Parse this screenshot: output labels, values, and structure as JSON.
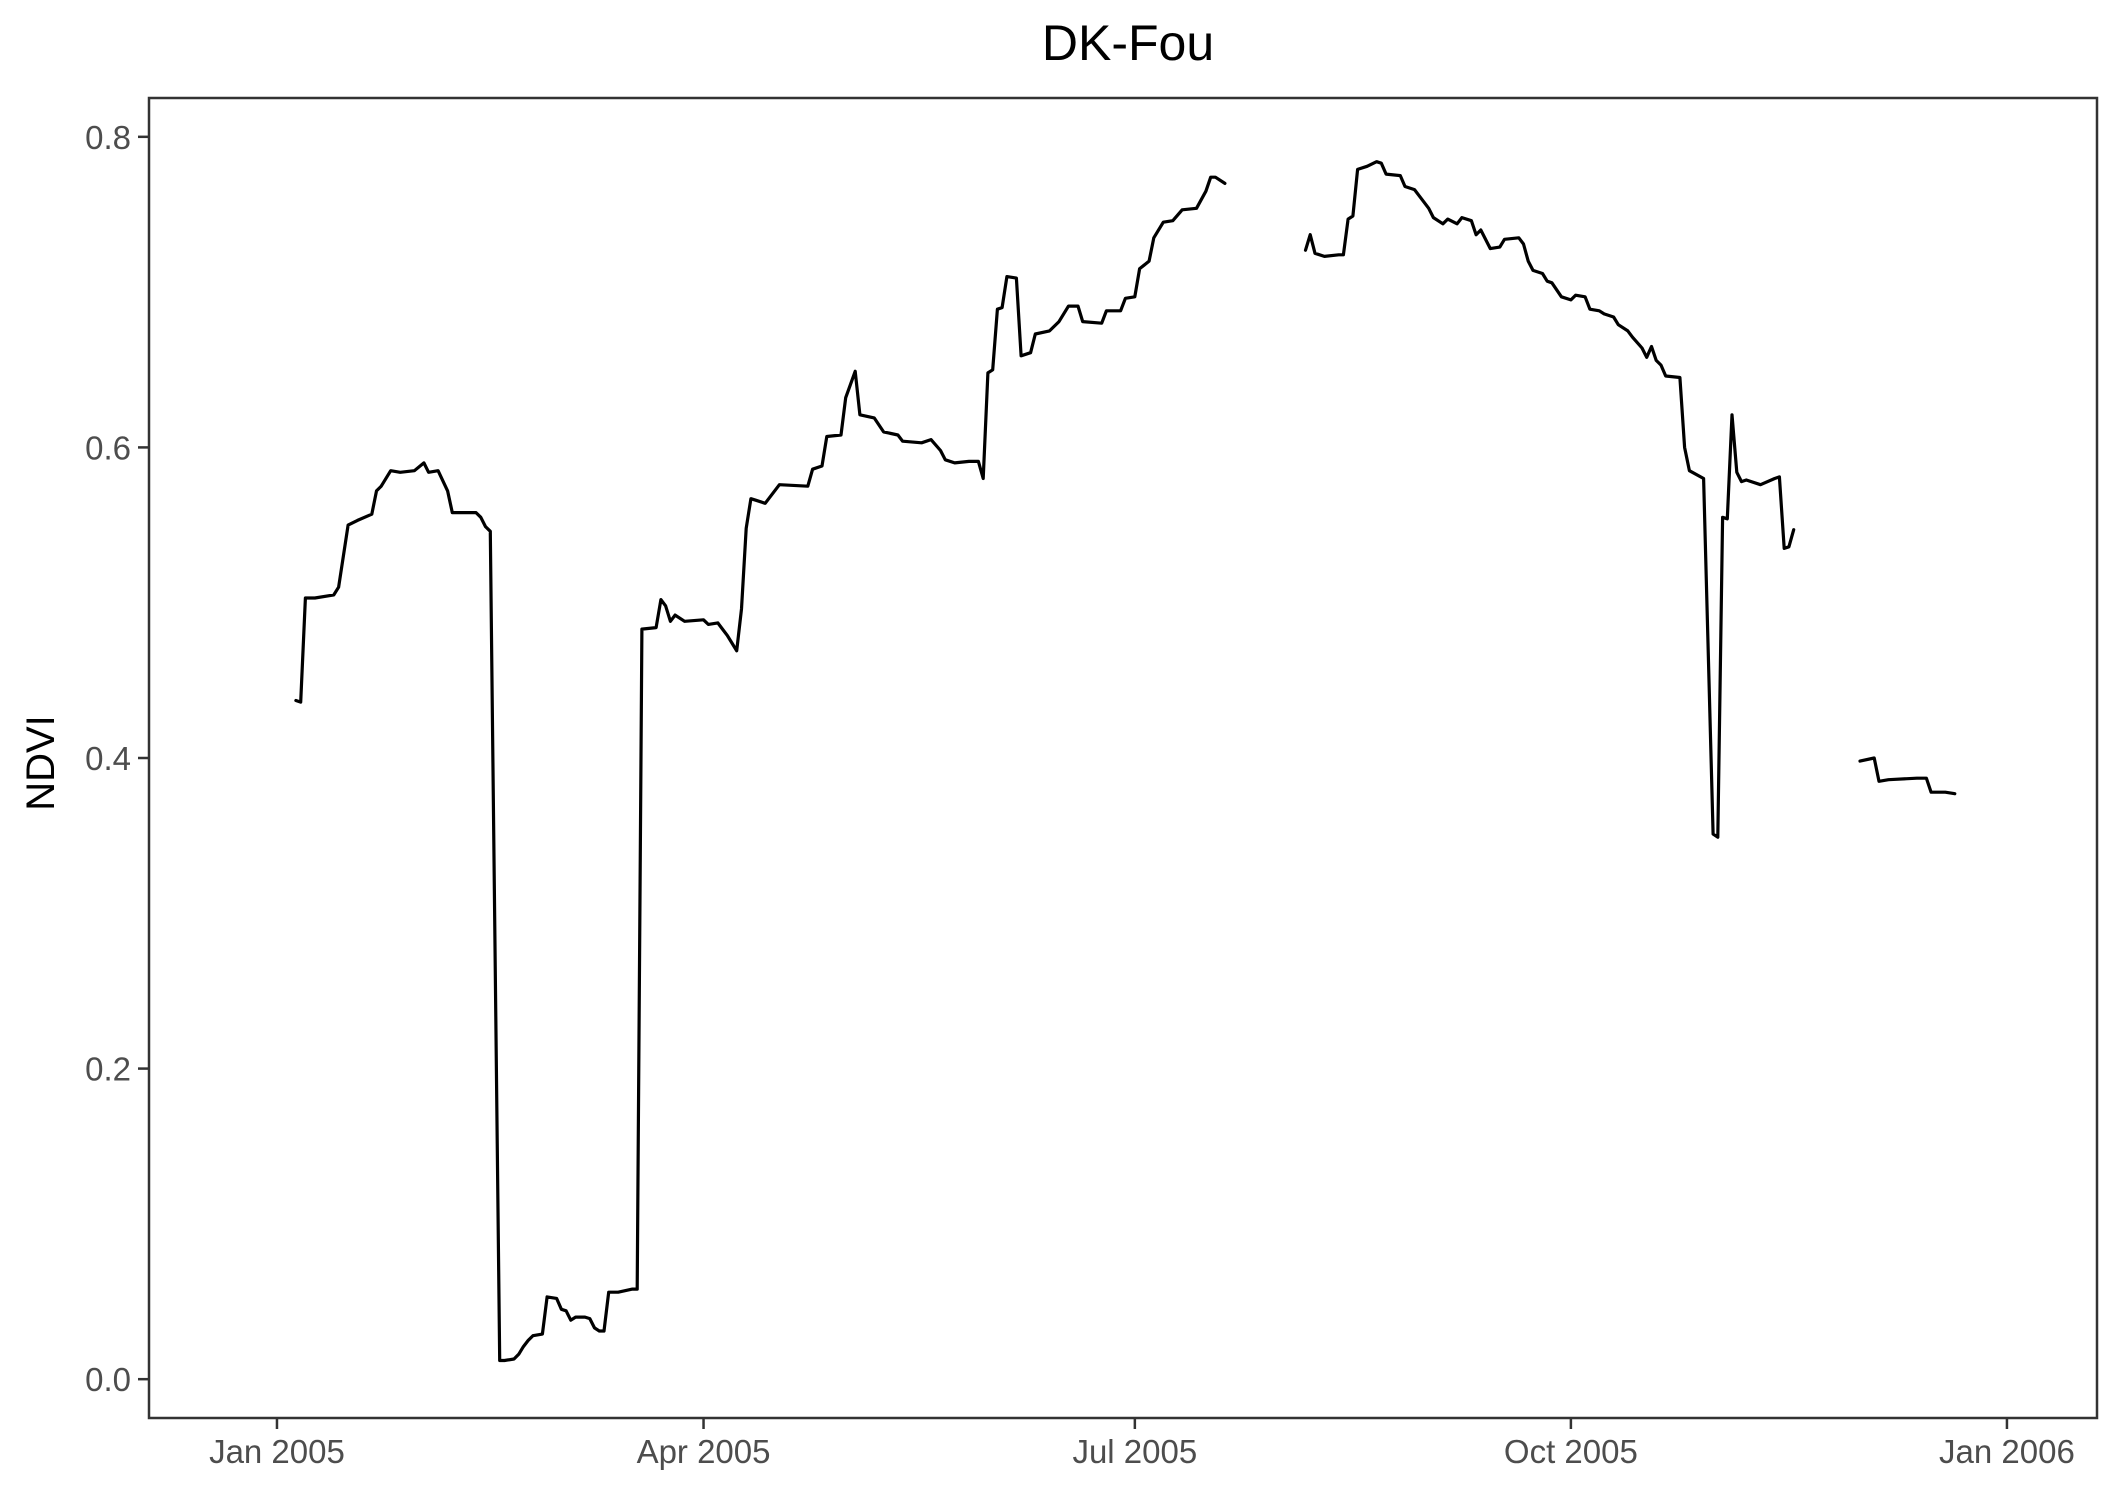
{
  "chart_data": {
    "type": "line",
    "title": "DK-Fou",
    "xlabel": "",
    "ylabel": "NDVI",
    "x_axis_type": "date",
    "xlim": [
      "2004-12-05",
      "2006-01-20"
    ],
    "ylim": [
      -0.025,
      0.825
    ],
    "grid": false,
    "x_ticks": [
      {
        "value": "2005-01-01",
        "label": "Jan 2005"
      },
      {
        "value": "2005-04-01",
        "label": "Apr 2005"
      },
      {
        "value": "2005-07-01",
        "label": "Jul 2005"
      },
      {
        "value": "2005-10-01",
        "label": "Oct 2005"
      },
      {
        "value": "2006-01-01",
        "label": "Jan 2006"
      }
    ],
    "y_ticks": [
      {
        "value": 0.0,
        "label": "0.0"
      },
      {
        "value": 0.2,
        "label": "0.2"
      },
      {
        "value": 0.4,
        "label": "0.4"
      },
      {
        "value": 0.6,
        "label": "0.6"
      },
      {
        "value": 0.8,
        "label": "0.8"
      }
    ],
    "series": [
      {
        "color": "#000000",
        "segments": [
          [
            [
              "2005-01-05",
              0.437
            ],
            [
              "2005-01-06",
              0.436
            ],
            [
              "2005-01-07",
              0.503
            ],
            [
              "2005-01-09",
              0.503
            ],
            [
              "2005-01-13",
              0.505
            ],
            [
              "2005-01-14",
              0.51
            ],
            [
              "2005-01-16",
              0.55
            ],
            [
              "2005-01-18",
              0.553
            ],
            [
              "2005-01-21",
              0.557
            ],
            [
              "2005-01-22",
              0.572
            ],
            [
              "2005-01-23",
              0.575
            ],
            [
              "2005-01-25",
              0.585
            ],
            [
              "2005-01-27",
              0.584
            ],
            [
              "2005-01-30",
              0.585
            ],
            [
              "2005-02-01",
              0.59
            ],
            [
              "2005-02-02",
              0.584
            ],
            [
              "2005-02-04",
              0.585
            ],
            [
              "2005-02-06",
              0.572
            ],
            [
              "2005-02-07",
              0.558
            ],
            [
              "2005-02-12",
              0.558
            ],
            [
              "2005-02-13",
              0.555
            ],
            [
              "2005-02-14",
              0.549
            ],
            [
              "2005-02-15",
              0.546
            ],
            [
              "2005-02-17",
              0.012
            ],
            [
              "2005-02-18",
              0.012
            ],
            [
              "2005-02-20",
              0.013
            ],
            [
              "2005-02-21",
              0.016
            ],
            [
              "2005-02-22",
              0.021
            ],
            [
              "2005-02-23",
              0.025
            ],
            [
              "2005-02-24",
              0.028
            ],
            [
              "2005-02-26",
              0.029
            ],
            [
              "2005-02-27",
              0.053
            ],
            [
              "2005-03-01",
              0.052
            ],
            [
              "2005-03-02",
              0.045
            ],
            [
              "2005-03-03",
              0.044
            ],
            [
              "2005-03-04",
              0.038
            ],
            [
              "2005-03-05",
              0.04
            ],
            [
              "2005-03-07",
              0.04
            ],
            [
              "2005-03-08",
              0.039
            ],
            [
              "2005-03-09",
              0.033
            ],
            [
              "2005-03-10",
              0.031
            ],
            [
              "2005-03-11",
              0.031
            ],
            [
              "2005-03-12",
              0.056
            ],
            [
              "2005-03-14",
              0.056
            ],
            [
              "2005-03-17",
              0.058
            ],
            [
              "2005-03-18",
              0.058
            ],
            [
              "2005-03-19",
              0.483
            ],
            [
              "2005-03-22",
              0.484
            ],
            [
              "2005-03-23",
              0.502
            ],
            [
              "2005-03-24",
              0.498
            ],
            [
              "2005-03-25",
              0.488
            ],
            [
              "2005-03-26",
              0.492
            ],
            [
              "2005-03-28",
              0.488
            ],
            [
              "2005-04-01",
              0.489
            ],
            [
              "2005-04-02",
              0.486
            ],
            [
              "2005-04-04",
              0.487
            ],
            [
              "2005-04-05",
              0.483
            ],
            [
              "2005-04-06",
              0.479
            ],
            [
              "2005-04-07",
              0.474
            ],
            [
              "2005-04-08",
              0.469
            ],
            [
              "2005-04-09",
              0.496
            ],
            [
              "2005-04-10",
              0.548
            ],
            [
              "2005-04-11",
              0.567
            ],
            [
              "2005-04-12",
              0.566
            ],
            [
              "2005-04-14",
              0.564
            ],
            [
              "2005-04-17",
              0.576
            ],
            [
              "2005-04-23",
              0.575
            ],
            [
              "2005-04-24",
              0.586
            ],
            [
              "2005-04-26",
              0.588
            ],
            [
              "2005-04-27",
              0.607
            ],
            [
              "2005-04-30",
              0.608
            ],
            [
              "2005-05-01",
              0.632
            ],
            [
              "2005-05-03",
              0.649
            ],
            [
              "2005-05-04",
              0.621
            ],
            [
              "2005-05-07",
              0.619
            ],
            [
              "2005-05-09",
              0.61
            ],
            [
              "2005-05-12",
              0.608
            ],
            [
              "2005-05-13",
              0.604
            ],
            [
              "2005-05-17",
              0.603
            ],
            [
              "2005-05-19",
              0.605
            ],
            [
              "2005-05-21",
              0.598
            ],
            [
              "2005-05-22",
              0.592
            ],
            [
              "2005-05-24",
              0.59
            ],
            [
              "2005-05-27",
              0.591
            ],
            [
              "2005-05-29",
              0.591
            ],
            [
              "2005-05-30",
              0.58
            ],
            [
              "2005-05-31",
              0.648
            ],
            [
              "2005-06-01",
              0.65
            ],
            [
              "2005-06-02",
              0.689
            ],
            [
              "2005-06-03",
              0.69
            ],
            [
              "2005-06-04",
              0.71
            ],
            [
              "2005-06-06",
              0.709
            ],
            [
              "2005-06-07",
              0.659
            ],
            [
              "2005-06-09",
              0.661
            ],
            [
              "2005-06-10",
              0.673
            ],
            [
              "2005-06-13",
              0.675
            ],
            [
              "2005-06-15",
              0.681
            ],
            [
              "2005-06-17",
              0.691
            ],
            [
              "2005-06-19",
              0.691
            ],
            [
              "2005-06-20",
              0.681
            ],
            [
              "2005-06-24",
              0.68
            ],
            [
              "2005-06-25",
              0.688
            ],
            [
              "2005-06-28",
              0.688
            ],
            [
              "2005-06-29",
              0.696
            ],
            [
              "2005-07-01",
              0.697
            ],
            [
              "2005-07-02",
              0.715
            ],
            [
              "2005-07-04",
              0.72
            ],
            [
              "2005-07-05",
              0.735
            ],
            [
              "2005-07-07",
              0.745
            ],
            [
              "2005-07-09",
              0.746
            ],
            [
              "2005-07-11",
              0.753
            ],
            [
              "2005-07-14",
              0.754
            ],
            [
              "2005-07-16",
              0.765
            ],
            [
              "2005-07-17",
              0.774
            ],
            [
              "2005-07-18",
              0.774
            ],
            [
              "2005-07-20",
              0.77
            ]
          ],
          [
            [
              "2005-08-06",
              0.727
            ],
            [
              "2005-08-07",
              0.737
            ],
            [
              "2005-08-08",
              0.725
            ],
            [
              "2005-08-10",
              0.723
            ],
            [
              "2005-08-13",
              0.724
            ],
            [
              "2005-08-14",
              0.724
            ],
            [
              "2005-08-15",
              0.747
            ],
            [
              "2005-08-16",
              0.749
            ],
            [
              "2005-08-17",
              0.779
            ],
            [
              "2005-08-19",
              0.781
            ],
            [
              "2005-08-21",
              0.784
            ],
            [
              "2005-08-22",
              0.783
            ],
            [
              "2005-08-23",
              0.776
            ],
            [
              "2005-08-26",
              0.775
            ],
            [
              "2005-08-27",
              0.768
            ],
            [
              "2005-08-29",
              0.766
            ],
            [
              "2005-08-30",
              0.762
            ],
            [
              "2005-09-01",
              0.754
            ],
            [
              "2005-09-02",
              0.748
            ],
            [
              "2005-09-04",
              0.744
            ],
            [
              "2005-09-05",
              0.747
            ],
            [
              "2005-09-07",
              0.744
            ],
            [
              "2005-09-08",
              0.748
            ],
            [
              "2005-09-10",
              0.746
            ],
            [
              "2005-09-11",
              0.737
            ],
            [
              "2005-09-12",
              0.74
            ],
            [
              "2005-09-14",
              0.728
            ],
            [
              "2005-09-16",
              0.729
            ],
            [
              "2005-09-17",
              0.734
            ],
            [
              "2005-09-20",
              0.735
            ],
            [
              "2005-09-21",
              0.731
            ],
            [
              "2005-09-22",
              0.72
            ],
            [
              "2005-09-23",
              0.714
            ],
            [
              "2005-09-25",
              0.712
            ],
            [
              "2005-09-26",
              0.707
            ],
            [
              "2005-09-27",
              0.706
            ],
            [
              "2005-09-29",
              0.697
            ],
            [
              "2005-10-01",
              0.695
            ],
            [
              "2005-10-02",
              0.698
            ],
            [
              "2005-10-04",
              0.697
            ],
            [
              "2005-10-05",
              0.689
            ],
            [
              "2005-10-07",
              0.688
            ],
            [
              "2005-10-08",
              0.686
            ],
            [
              "2005-10-10",
              0.684
            ],
            [
              "2005-10-11",
              0.679
            ],
            [
              "2005-10-13",
              0.675
            ],
            [
              "2005-10-14",
              0.671
            ],
            [
              "2005-10-16",
              0.664
            ],
            [
              "2005-10-17",
              0.658
            ],
            [
              "2005-10-18",
              0.665
            ],
            [
              "2005-10-19",
              0.656
            ],
            [
              "2005-10-20",
              0.653
            ],
            [
              "2005-10-21",
              0.646
            ],
            [
              "2005-10-24",
              0.645
            ],
            [
              "2005-10-25",
              0.6
            ],
            [
              "2005-10-26",
              0.585
            ],
            [
              "2005-10-29",
              0.58
            ],
            [
              "2005-10-31",
              0.351
            ],
            [
              "2005-11-01",
              0.349
            ],
            [
              "2005-11-02",
              0.555
            ],
            [
              "2005-11-03",
              0.554
            ],
            [
              "2005-11-04",
              0.621
            ],
            [
              "2005-11-05",
              0.584
            ],
            [
              "2005-11-06",
              0.578
            ],
            [
              "2005-11-07",
              0.579
            ],
            [
              "2005-11-10",
              0.576
            ],
            [
              "2005-11-13",
              0.58
            ],
            [
              "2005-11-14",
              0.581
            ],
            [
              "2005-11-15",
              0.535
            ],
            [
              "2005-11-16",
              0.536
            ],
            [
              "2005-11-17",
              0.547
            ]
          ],
          [
            [
              "2005-12-01",
              0.398
            ],
            [
              "2005-12-04",
              0.4
            ],
            [
              "2005-12-05",
              0.385
            ],
            [
              "2005-12-07",
              0.386
            ],
            [
              "2005-12-13",
              0.387
            ],
            [
              "2005-12-15",
              0.387
            ],
            [
              "2005-12-16",
              0.378
            ],
            [
              "2005-12-19",
              0.378
            ],
            [
              "2005-12-21",
              0.377
            ]
          ]
        ]
      }
    ]
  }
}
